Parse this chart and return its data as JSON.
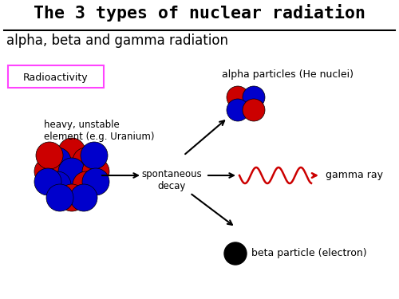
{
  "title": "The 3 types of nuclear radiation",
  "subtitle": "alpha, beta and gamma radiation",
  "radioactivity_label": "Radioactivity",
  "heavy_element_label": "heavy, unstable\nelement (e.g. Uranium)",
  "spontaneous_decay_label": "spontaneous\ndecay",
  "alpha_label": "alpha particles (He nuclei)",
  "gamma_label": "gamma ray",
  "beta_label": "beta particle (electron)",
  "bg_color": "#ffffff",
  "title_color": "#000000",
  "red_color": "#cc0000",
  "blue_color": "#0000cc",
  "black_color": "#000000",
  "pink_border": "#ff44ff",
  "gamma_wave_color": "#cc0000"
}
